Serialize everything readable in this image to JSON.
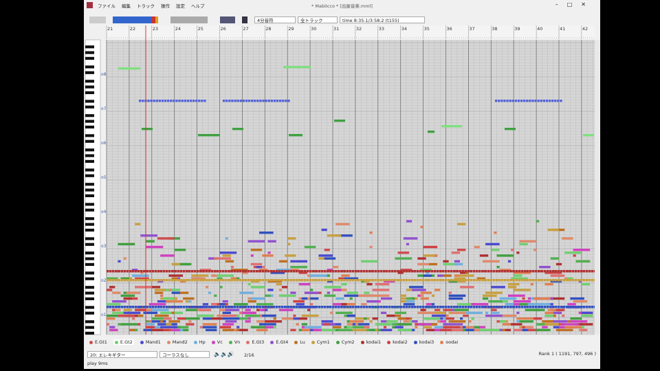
{
  "window": {
    "title": "* MabiIcco * [出屋音楽.mml]",
    "menu": [
      "ファイル",
      "編集",
      "トラック",
      "操作",
      "設定",
      "ヘルプ"
    ]
  },
  "toolbar": {
    "note_length": "4分音符",
    "track_filter": "全トラック",
    "time": "time 8:35.1/3:58.2 (t155)"
  },
  "ruler": {
    "measures": [
      "21",
      "22",
      "23",
      "24",
      "25",
      "26",
      "27",
      "28",
      "29",
      "30",
      "31",
      "32",
      "33",
      "34",
      "35",
      "36",
      "37",
      "38",
      "39",
      "40",
      "41",
      "42"
    ]
  },
  "octaves": [
    "o8",
    "o7",
    "o6",
    "o5",
    "o4",
    "o3",
    "o2",
    "o1"
  ],
  "tracks": [
    "E.Gt1",
    "E.Gt2",
    "Mand1",
    "Mand2",
    "Hp",
    "Vc",
    "Vn",
    "E.Gt3",
    "E.Gt4",
    "Lu",
    "Cym1",
    "Cym2",
    "kodai1",
    "kodai2",
    "kodai3",
    "oodai"
  ],
  "footer": {
    "instrument": "20: エレキギター",
    "effect": "コーラスなし",
    "page": "2/16",
    "rank": "Rank 1 ( 1191, 797, 496 )",
    "status": "play 9ms"
  }
}
